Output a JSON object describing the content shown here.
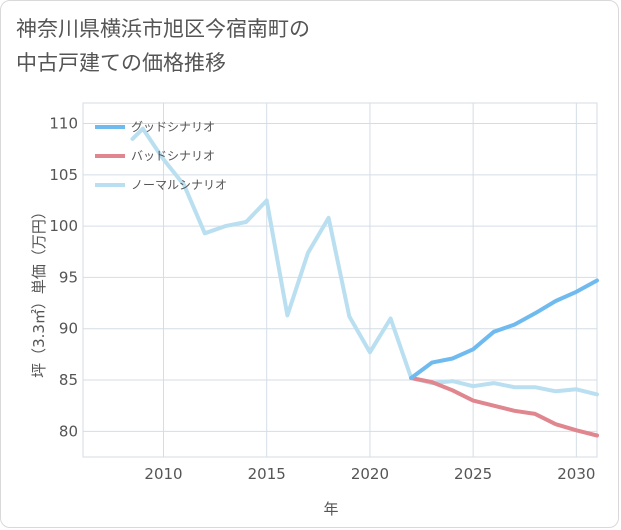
{
  "title": "神奈川県横浜市旭区今宿南町の\n中古戸建ての価格推移",
  "chart_data": {
    "type": "line",
    "xlabel": "年",
    "ylabel": "坪（3.3㎡）単価（万円）",
    "xlim": [
      2006.1,
      2031
    ],
    "ylim": [
      77.5,
      112
    ],
    "xticks": [
      2010,
      2015,
      2020,
      2025,
      2030
    ],
    "yticks": [
      80,
      85,
      90,
      95,
      100,
      105,
      110
    ],
    "grid": true,
    "legend_position": "top-left",
    "series": [
      {
        "name": "グッドシナリオ",
        "color": "#6fbbf0",
        "x": [
          2022,
          2023,
          2024,
          2025,
          2026,
          2027,
          2028,
          2029,
          2030,
          2031
        ],
        "y": [
          85.2,
          86.7,
          87.1,
          88.0,
          89.7,
          90.4,
          91.5,
          92.7,
          93.6,
          94.7
        ]
      },
      {
        "name": "バッドシナリオ",
        "color": "#e0868f",
        "x": [
          2022,
          2023,
          2024,
          2025,
          2026,
          2027,
          2028,
          2029,
          2030,
          2031
        ],
        "y": [
          85.2,
          84.8,
          84.0,
          83.0,
          82.5,
          82.0,
          81.7,
          80.7,
          80.1,
          79.6
        ]
      },
      {
        "name": "ノーマルシナリオ",
        "color": "#b9dff0",
        "x": [
          2008.5,
          2009,
          2010,
          2011,
          2012,
          2013,
          2014,
          2015,
          2016,
          2017,
          2018,
          2019,
          2020,
          2021,
          2022,
          2023,
          2024,
          2025,
          2026,
          2027,
          2028,
          2029,
          2030,
          2031
        ],
        "y": [
          108.5,
          109.5,
          106.5,
          104.0,
          99.3,
          100.0,
          100.4,
          102.5,
          91.3,
          97.4,
          100.8,
          91.2,
          87.7,
          91.0,
          85.2,
          84.7,
          84.9,
          84.4,
          84.7,
          84.3,
          84.3,
          83.9,
          84.1,
          83.6
        ]
      }
    ]
  }
}
